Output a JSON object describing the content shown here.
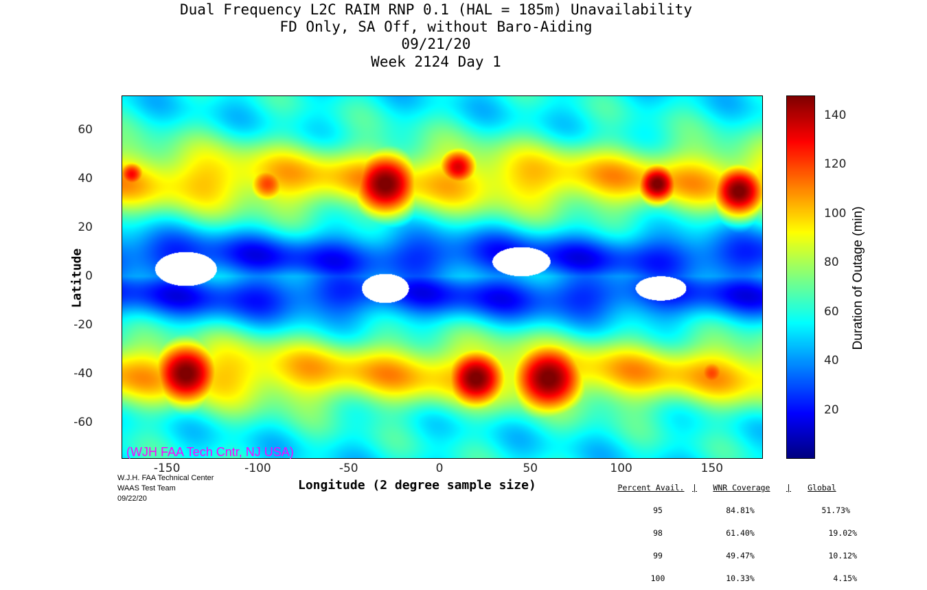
{
  "chart_data": {
    "type": "heatmap",
    "title": [
      "Dual Frequency L2C RAIM RNP 0.1 (HAL = 185m) Unavailability",
      "FD Only, SA Off, without Baro-Aiding",
      "09/21/20",
      "Week 2124 Day 1"
    ],
    "xlabel": "Longitude (2 degree sample size)",
    "ylabel": "Latitude",
    "colorbar_label": "Duration of Outage (min)",
    "xlim": [
      -175,
      178
    ],
    "ylim": [
      -75,
      74
    ],
    "clim": [
      0,
      148
    ],
    "xticks": [
      -150,
      -100,
      -50,
      0,
      50,
      100,
      150
    ],
    "yticks": [
      60,
      40,
      20,
      0,
      -20,
      -40,
      -60
    ],
    "cticks": [
      140,
      120,
      100,
      80,
      60,
      40,
      20
    ],
    "hotspots": [
      {
        "lon": -140,
        "lat": -40,
        "value": 150,
        "r": 22
      },
      {
        "lon": -30,
        "lat": 38,
        "value": 150,
        "r": 22
      },
      {
        "lon": 20,
        "lat": -42,
        "value": 150,
        "r": 20
      },
      {
        "lon": 60,
        "lat": -42,
        "value": 150,
        "r": 24
      },
      {
        "lon": 120,
        "lat": 38,
        "value": 150,
        "r": 14
      },
      {
        "lon": 165,
        "lat": 35,
        "value": 150,
        "r": 18
      },
      {
        "lon": 10,
        "lat": 45,
        "value": 135,
        "r": 14
      },
      {
        "lon": -95,
        "lat": 38,
        "value": 120,
        "r": 14
      },
      {
        "lon": -170,
        "lat": 42,
        "value": 130,
        "r": 10
      },
      {
        "lon": 150,
        "lat": -40,
        "value": 120,
        "r": 12
      }
    ],
    "zero_regions": [
      {
        "lon": -140,
        "lat": 3,
        "rx": 17,
        "ry": 7
      },
      {
        "lon": -30,
        "lat": -5,
        "rx": 13,
        "ry": 6
      },
      {
        "lon": 45,
        "lat": 6,
        "rx": 16,
        "ry": 6
      },
      {
        "lon": 122,
        "lat": -5,
        "rx": 14,
        "ry": 5
      }
    ]
  },
  "watermark": "(WJH FAA Tech Cntr, NJ USA)",
  "credits": [
    "W.J.H. FAA Technical Center",
    "WAAS Test Team",
    "09/22/20"
  ],
  "stats": {
    "headers": [
      "Percent Avail.",
      "WNR Coverage",
      "Global"
    ],
    "rows": [
      [
        "95",
        "84.81%",
        "51.73%"
      ],
      [
        "98",
        "61.40%",
        "19.02%"
      ],
      [
        "99",
        "49.47%",
        "10.12%"
      ],
      [
        "100",
        "10.33%",
        "4.15%"
      ]
    ]
  }
}
